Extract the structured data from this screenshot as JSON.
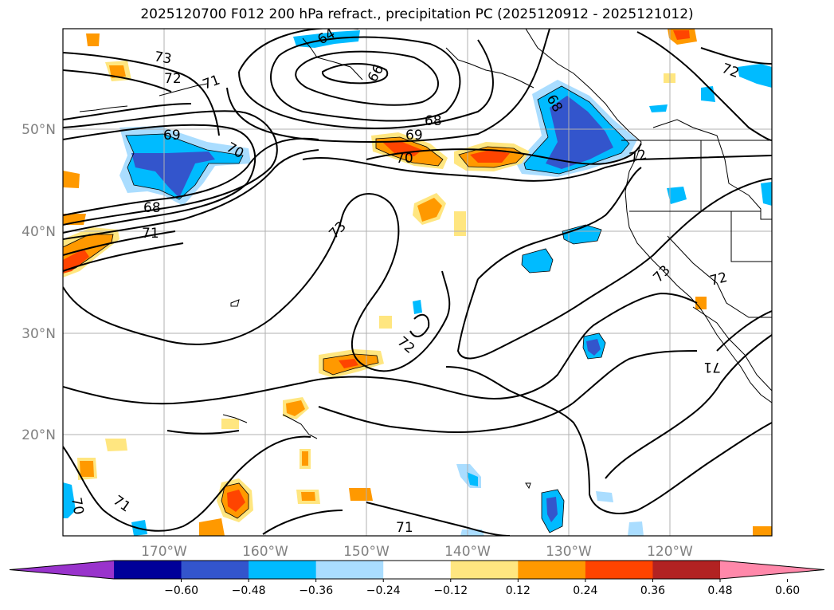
{
  "title": "2025120700 F012 200 hPa refract., precipitation PC (2025120912 - 2025121012)",
  "lat_labels": [
    "50°N",
    "40°N",
    "30°N",
    "20°N"
  ],
  "lon_labels": [
    "170°W",
    "160°W",
    "150°W",
    "140°W",
    "130°W",
    "120°W"
  ],
  "colorbar": {
    "tick_labels": [
      "−0.60",
      "−0.48",
      "−0.36",
      "−0.24",
      "−0.12",
      "0.12",
      "0.24",
      "0.36",
      "0.48",
      "0.60"
    ],
    "colors": [
      "#9933cc",
      "#000099",
      "#3355cc",
      "#00bbff",
      "#aaddff",
      "#ffffff",
      "#ffe680",
      "#ff9900",
      "#ff4400",
      "#b22222",
      "#ff88aa"
    ]
  },
  "contour_labels": [
    "73",
    "72",
    "71",
    "64",
    "66",
    "69",
    "70",
    "68",
    "68",
    "71",
    "73",
    "69",
    "68",
    "70",
    "72",
    "73",
    "72",
    "72",
    "71",
    "70",
    "71",
    "71",
    "72"
  ]
}
